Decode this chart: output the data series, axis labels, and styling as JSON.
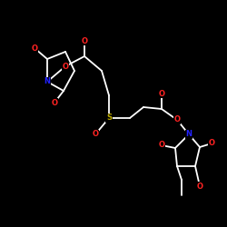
{
  "background_color": "#000000",
  "bond_color": "#FFFFFF",
  "atom_colors": {
    "O": "#FF2222",
    "N": "#2222FF",
    "S": "#BBAA00",
    "C": "#FFFFFF"
  },
  "figsize": [
    2.5,
    2.5
  ],
  "dpi": 100,
  "line_width": 1.3,
  "font_size": 6.0
}
